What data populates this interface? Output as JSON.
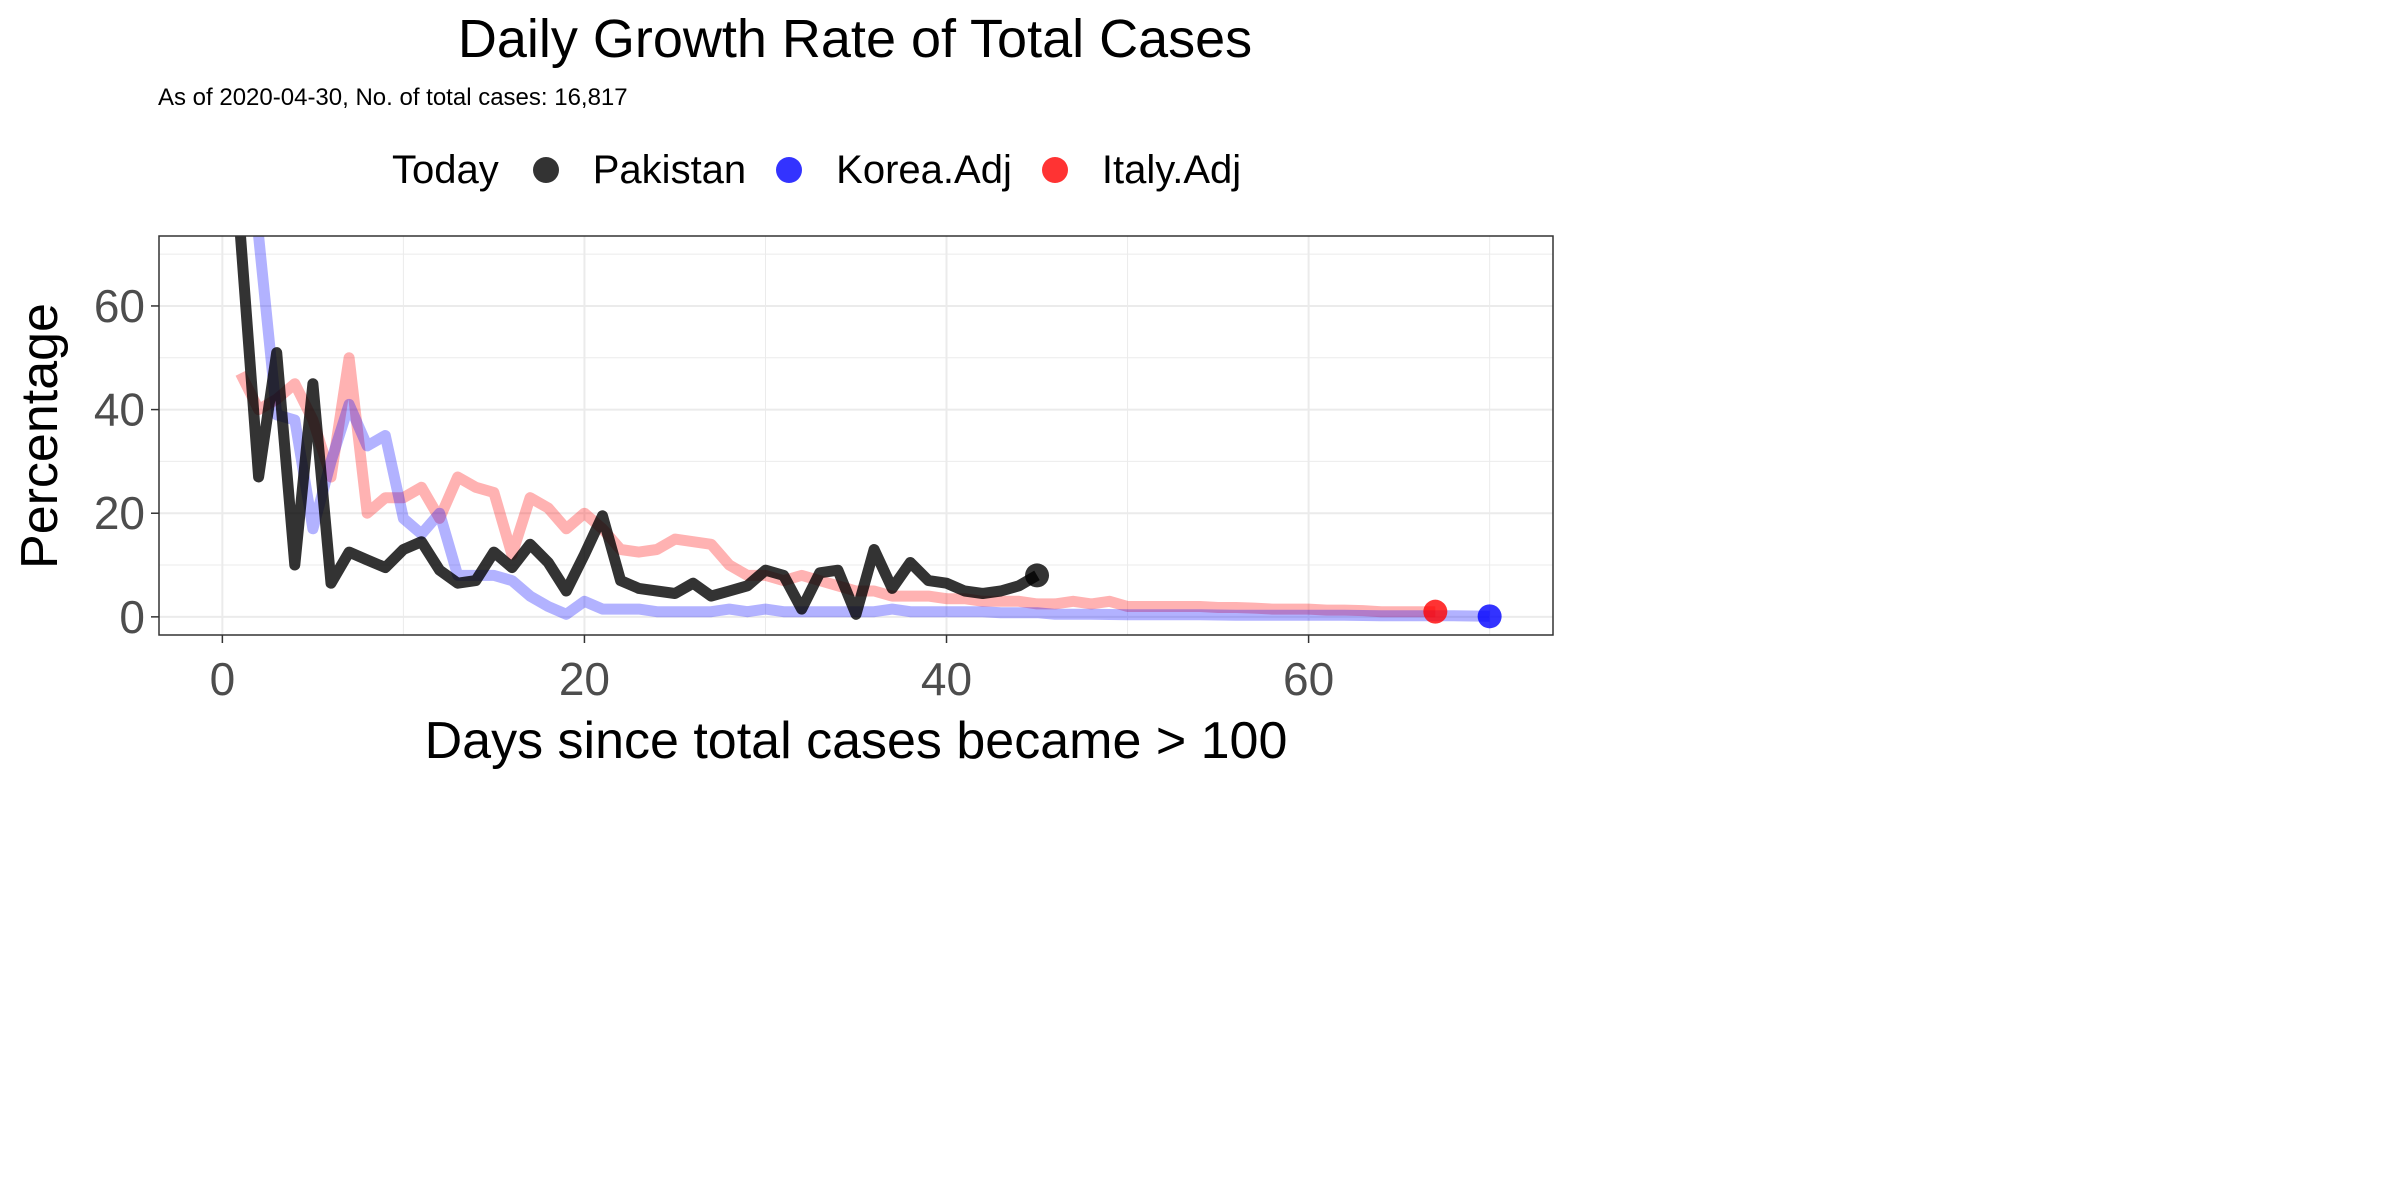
{
  "chart_data": {
    "type": "line",
    "title": "Daily Growth Rate of Total Cases",
    "subtitle": "As of 2020-04-30, No. of total cases: 16,817",
    "xlabel": "Days since total cases became > 100",
    "ylabel": "Percentage",
    "xlim": [
      -3.5,
      73.5
    ],
    "ylim": [
      -3.5,
      73.5
    ],
    "x_ticks": [
      0,
      20,
      40,
      60
    ],
    "y_ticks": [
      0,
      20,
      40,
      60
    ],
    "grid": true,
    "legend": {
      "title": "Today",
      "position": "top",
      "entries": [
        "Pakistan",
        "Korea.Adj",
        "Italy.Adj"
      ]
    },
    "series": [
      {
        "name": "Italy.Adj",
        "color": "#ff0000",
        "opacity": 0.3,
        "points": [
          [
            1,
            47
          ],
          [
            2,
            40
          ],
          [
            3,
            42
          ],
          [
            4,
            45
          ],
          [
            5,
            38
          ],
          [
            6,
            27
          ],
          [
            7,
            50
          ],
          [
            8,
            20
          ],
          [
            9,
            23
          ],
          [
            10,
            23
          ],
          [
            11,
            25
          ],
          [
            12,
            19
          ],
          [
            13,
            27
          ],
          [
            14,
            25
          ],
          [
            15,
            24
          ],
          [
            16,
            12
          ],
          [
            17,
            23
          ],
          [
            18,
            21
          ],
          [
            19,
            17
          ],
          [
            20,
            20
          ],
          [
            21,
            17
          ],
          [
            22,
            13
          ],
          [
            23,
            12.5
          ],
          [
            24,
            13
          ],
          [
            25,
            15
          ],
          [
            26,
            14.5
          ],
          [
            27,
            14
          ],
          [
            28,
            10
          ],
          [
            29,
            8
          ],
          [
            30,
            8
          ],
          [
            31,
            7
          ],
          [
            32,
            8
          ],
          [
            33,
            7
          ],
          [
            34,
            6
          ],
          [
            35,
            5
          ],
          [
            36,
            5
          ],
          [
            37,
            4
          ],
          [
            38,
            4
          ],
          [
            39,
            4
          ],
          [
            40,
            3.5
          ],
          [
            41,
            3.5
          ],
          [
            42,
            3
          ],
          [
            43,
            3
          ],
          [
            44,
            3
          ],
          [
            45,
            2.5
          ],
          [
            46,
            2.5
          ],
          [
            47,
            3
          ],
          [
            48,
            2.5
          ],
          [
            49,
            3
          ],
          [
            50,
            2
          ],
          [
            51,
            2
          ],
          [
            52,
            2
          ],
          [
            53,
            2
          ],
          [
            54,
            2
          ],
          [
            55,
            1.8
          ],
          [
            56,
            1.8
          ],
          [
            57,
            1.7
          ],
          [
            58,
            1.5
          ],
          [
            59,
            1.5
          ],
          [
            60,
            1.5
          ],
          [
            61,
            1.3
          ],
          [
            62,
            1.3
          ],
          [
            63,
            1.2
          ],
          [
            64,
            1
          ],
          [
            65,
            1
          ],
          [
            66,
            1
          ],
          [
            67,
            1
          ]
        ]
      },
      {
        "name": "Korea.Adj",
        "color": "#0000ff",
        "opacity": 0.3,
        "points": [
          [
            2,
            73.5
          ],
          [
            3,
            39
          ],
          [
            4,
            38
          ],
          [
            5,
            17
          ],
          [
            6,
            30
          ],
          [
            7,
            41
          ],
          [
            8,
            33
          ],
          [
            9,
            35
          ],
          [
            10,
            19
          ],
          [
            11,
            16
          ],
          [
            12,
            20
          ],
          [
            13,
            8
          ],
          [
            14,
            8
          ],
          [
            15,
            8
          ],
          [
            16,
            7
          ],
          [
            17,
            4
          ],
          [
            18,
            2
          ],
          [
            19,
            0.5
          ],
          [
            20,
            3
          ],
          [
            21,
            1.5
          ],
          [
            22,
            1.5
          ],
          [
            23,
            1.5
          ],
          [
            24,
            1
          ],
          [
            25,
            1
          ],
          [
            26,
            1
          ],
          [
            27,
            1
          ],
          [
            28,
            1.5
          ],
          [
            29,
            1
          ],
          [
            30,
            1.5
          ],
          [
            31,
            1
          ],
          [
            32,
            1
          ],
          [
            33,
            1
          ],
          [
            34,
            1
          ],
          [
            35,
            1
          ],
          [
            36,
            1
          ],
          [
            37,
            1.5
          ],
          [
            38,
            1
          ],
          [
            39,
            1
          ],
          [
            40,
            1
          ],
          [
            41,
            1
          ],
          [
            42,
            1
          ],
          [
            43,
            0.8
          ],
          [
            44,
            0.8
          ],
          [
            45,
            0.8
          ],
          [
            46,
            0.5
          ],
          [
            48,
            0.5
          ],
          [
            50,
            0.4
          ],
          [
            52,
            0.4
          ],
          [
            54,
            0.4
          ],
          [
            56,
            0.3
          ],
          [
            58,
            0.3
          ],
          [
            60,
            0.3
          ],
          [
            62,
            0.3
          ],
          [
            64,
            0.2
          ],
          [
            66,
            0.2
          ],
          [
            68,
            0.2
          ],
          [
            70,
            0.1
          ]
        ]
      },
      {
        "name": "Pakistan",
        "color": "#000000",
        "opacity": 0.8,
        "points": [
          [
            1,
            73.5
          ],
          [
            2,
            27
          ],
          [
            3,
            51
          ],
          [
            4,
            10
          ],
          [
            5,
            45
          ],
          [
            6,
            6.5
          ],
          [
            7,
            12.5
          ],
          [
            8,
            11
          ],
          [
            9,
            9.5
          ],
          [
            10,
            13
          ],
          [
            11,
            14.5
          ],
          [
            12,
            9
          ],
          [
            13,
            6.5
          ],
          [
            14,
            7
          ],
          [
            15,
            12.5
          ],
          [
            16,
            9.5
          ],
          [
            17,
            14
          ],
          [
            18,
            10.5
          ],
          [
            19,
            5
          ],
          [
            20,
            12
          ],
          [
            21,
            19.5
          ],
          [
            22,
            7
          ],
          [
            23,
            5.5
          ],
          [
            24,
            5
          ],
          [
            25,
            4.5
          ],
          [
            26,
            6.5
          ],
          [
            27,
            4
          ],
          [
            28,
            5
          ],
          [
            29,
            6
          ],
          [
            30,
            9
          ],
          [
            31,
            8
          ],
          [
            32,
            1.5
          ],
          [
            33,
            8.5
          ],
          [
            34,
            9
          ],
          [
            35,
            0.5
          ],
          [
            36,
            13
          ],
          [
            37,
            5.5
          ],
          [
            38,
            10.5
          ],
          [
            39,
            7
          ],
          [
            40,
            6.5
          ],
          [
            41,
            5
          ],
          [
            42,
            4.5
          ],
          [
            43,
            5
          ],
          [
            44,
            6
          ],
          [
            45,
            8
          ]
        ]
      }
    ],
    "today_points": [
      {
        "name": "Pakistan",
        "x": 45,
        "y": 8,
        "color": "#000000",
        "opacity": 0.8
      },
      {
        "name": "Korea.Adj",
        "x": 70,
        "y": 0.1,
        "color": "#0000ff",
        "opacity": 0.8
      },
      {
        "name": "Italy.Adj",
        "x": 67,
        "y": 1,
        "color": "#ff0000",
        "opacity": 0.8
      }
    ]
  }
}
